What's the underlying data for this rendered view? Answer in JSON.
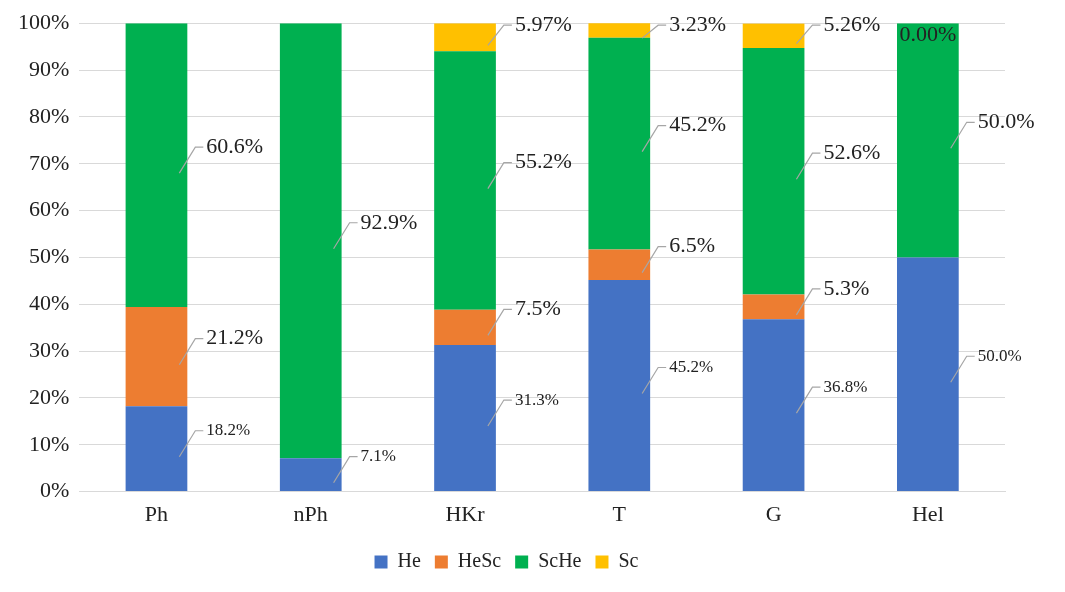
{
  "chart_data": {
    "type": "bar",
    "stacked": true,
    "categories": [
      "Ph",
      "nPh",
      "HKr",
      "T",
      "G",
      "Hel"
    ],
    "series": [
      {
        "name": "He",
        "color": "#4472c4",
        "values": [
          18.2,
          7.1,
          31.3,
          45.2,
          36.8,
          50.0
        ],
        "value_labels": [
          "18.2%",
          "7.1%",
          "31.3%",
          "45.2%",
          "36.8%",
          "50.0%"
        ]
      },
      {
        "name": "HeSc",
        "color": "#ed7d31",
        "values": [
          21.2,
          0,
          7.5,
          6.5,
          5.3,
          0
        ],
        "value_labels": [
          "21.2%",
          null,
          "7.5%",
          "6.5%",
          "5.3%",
          null
        ]
      },
      {
        "name": "ScHe",
        "color": "#00b050",
        "values": [
          60.6,
          92.9,
          55.2,
          45.2,
          52.6,
          50.0
        ],
        "value_labels": [
          "60.6%",
          "92.9%",
          "55.2%",
          "45.2%",
          "52.6%",
          "50.0%"
        ]
      },
      {
        "name": "Sc",
        "color": "#ffc000",
        "values": [
          0,
          0,
          5.97,
          3.23,
          5.26,
          0
        ],
        "value_labels": [
          null,
          null,
          "5.97%",
          "3.23%",
          "5.26%",
          "0.00%"
        ]
      }
    ],
    "ylim": [
      0,
      100
    ],
    "yticks": [
      {
        "value": 0,
        "label": "0%"
      },
      {
        "value": 10,
        "label": "10%"
      },
      {
        "value": 20,
        "label": "20%"
      },
      {
        "value": 30,
        "label": "30%"
      },
      {
        "value": 40,
        "label": "40%"
      },
      {
        "value": 50,
        "label": "50%"
      },
      {
        "value": 60,
        "label": "60%"
      },
      {
        "value": 70,
        "label": "70%"
      },
      {
        "value": 80,
        "label": "80%"
      },
      {
        "value": 90,
        "label": "90%"
      },
      {
        "value": 100,
        "label": "100%"
      }
    ],
    "grid": "y",
    "legend": "bottom"
  }
}
